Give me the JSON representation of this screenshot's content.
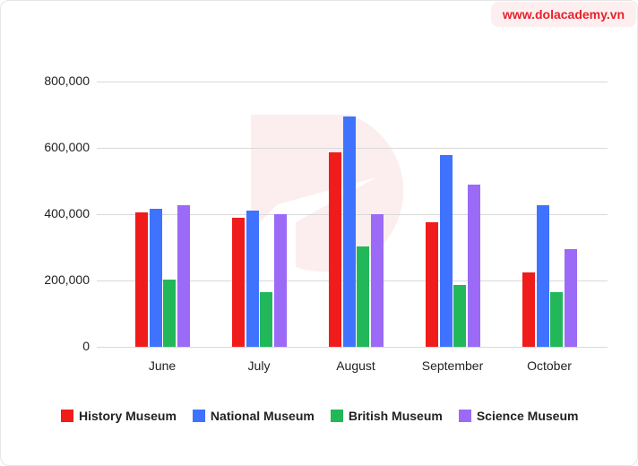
{
  "header": {
    "badge": "www.dolacademy.vn"
  },
  "colors": {
    "History Museum": "#f01c1c",
    "National Museum": "#3f73ff",
    "British Museum": "#22b85a",
    "Science Museum": "#9b6af6"
  },
  "chart_data": {
    "type": "bar",
    "title": "",
    "xlabel": "",
    "ylabel": "",
    "categories": [
      "June",
      "July",
      "August",
      "September",
      "October"
    ],
    "series": [
      {
        "name": "History Museum",
        "values": [
          405000,
          389000,
          586000,
          376000,
          224000
        ]
      },
      {
        "name": "National Museum",
        "values": [
          416000,
          411000,
          695000,
          578000,
          427000
        ]
      },
      {
        "name": "British Museum",
        "values": [
          203000,
          165000,
          303000,
          186000,
          165000
        ]
      },
      {
        "name": "Science Museum",
        "values": [
          427000,
          400000,
          400000,
          489000,
          295000
        ]
      }
    ],
    "ylim": [
      0,
      800000
    ],
    "yticks": [
      "0",
      "200,000",
      "400,000",
      "600,000",
      "800,000"
    ],
    "grid": true,
    "legend_position": "bottom"
  }
}
